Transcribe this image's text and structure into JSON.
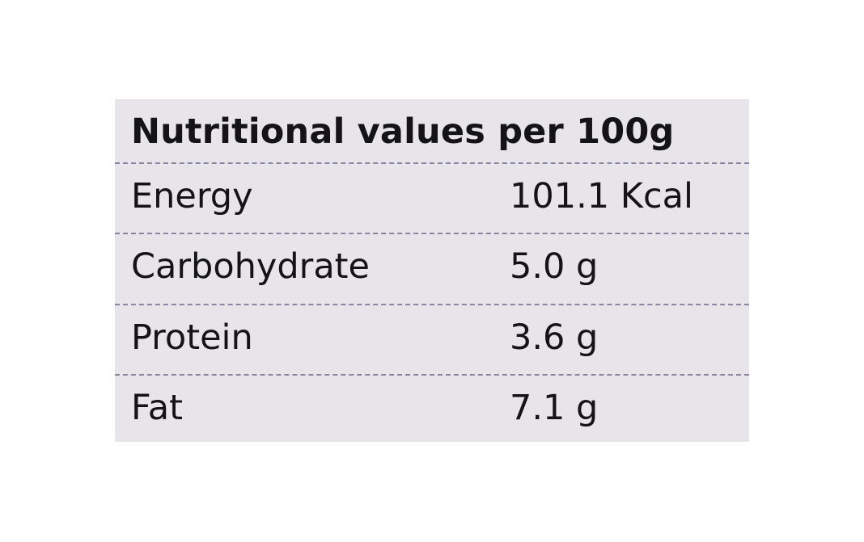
{
  "label": {
    "title": "Nutritional values per 100g",
    "rows": [
      {
        "name": "Energy",
        "value": "101.1 Kcal"
      },
      {
        "name": "Carbohydrate",
        "value": "5.0 g"
      },
      {
        "name": "Protein",
        "value": "3.6 g"
      },
      {
        "name": "Fat",
        "value": "7.1 g"
      }
    ]
  }
}
